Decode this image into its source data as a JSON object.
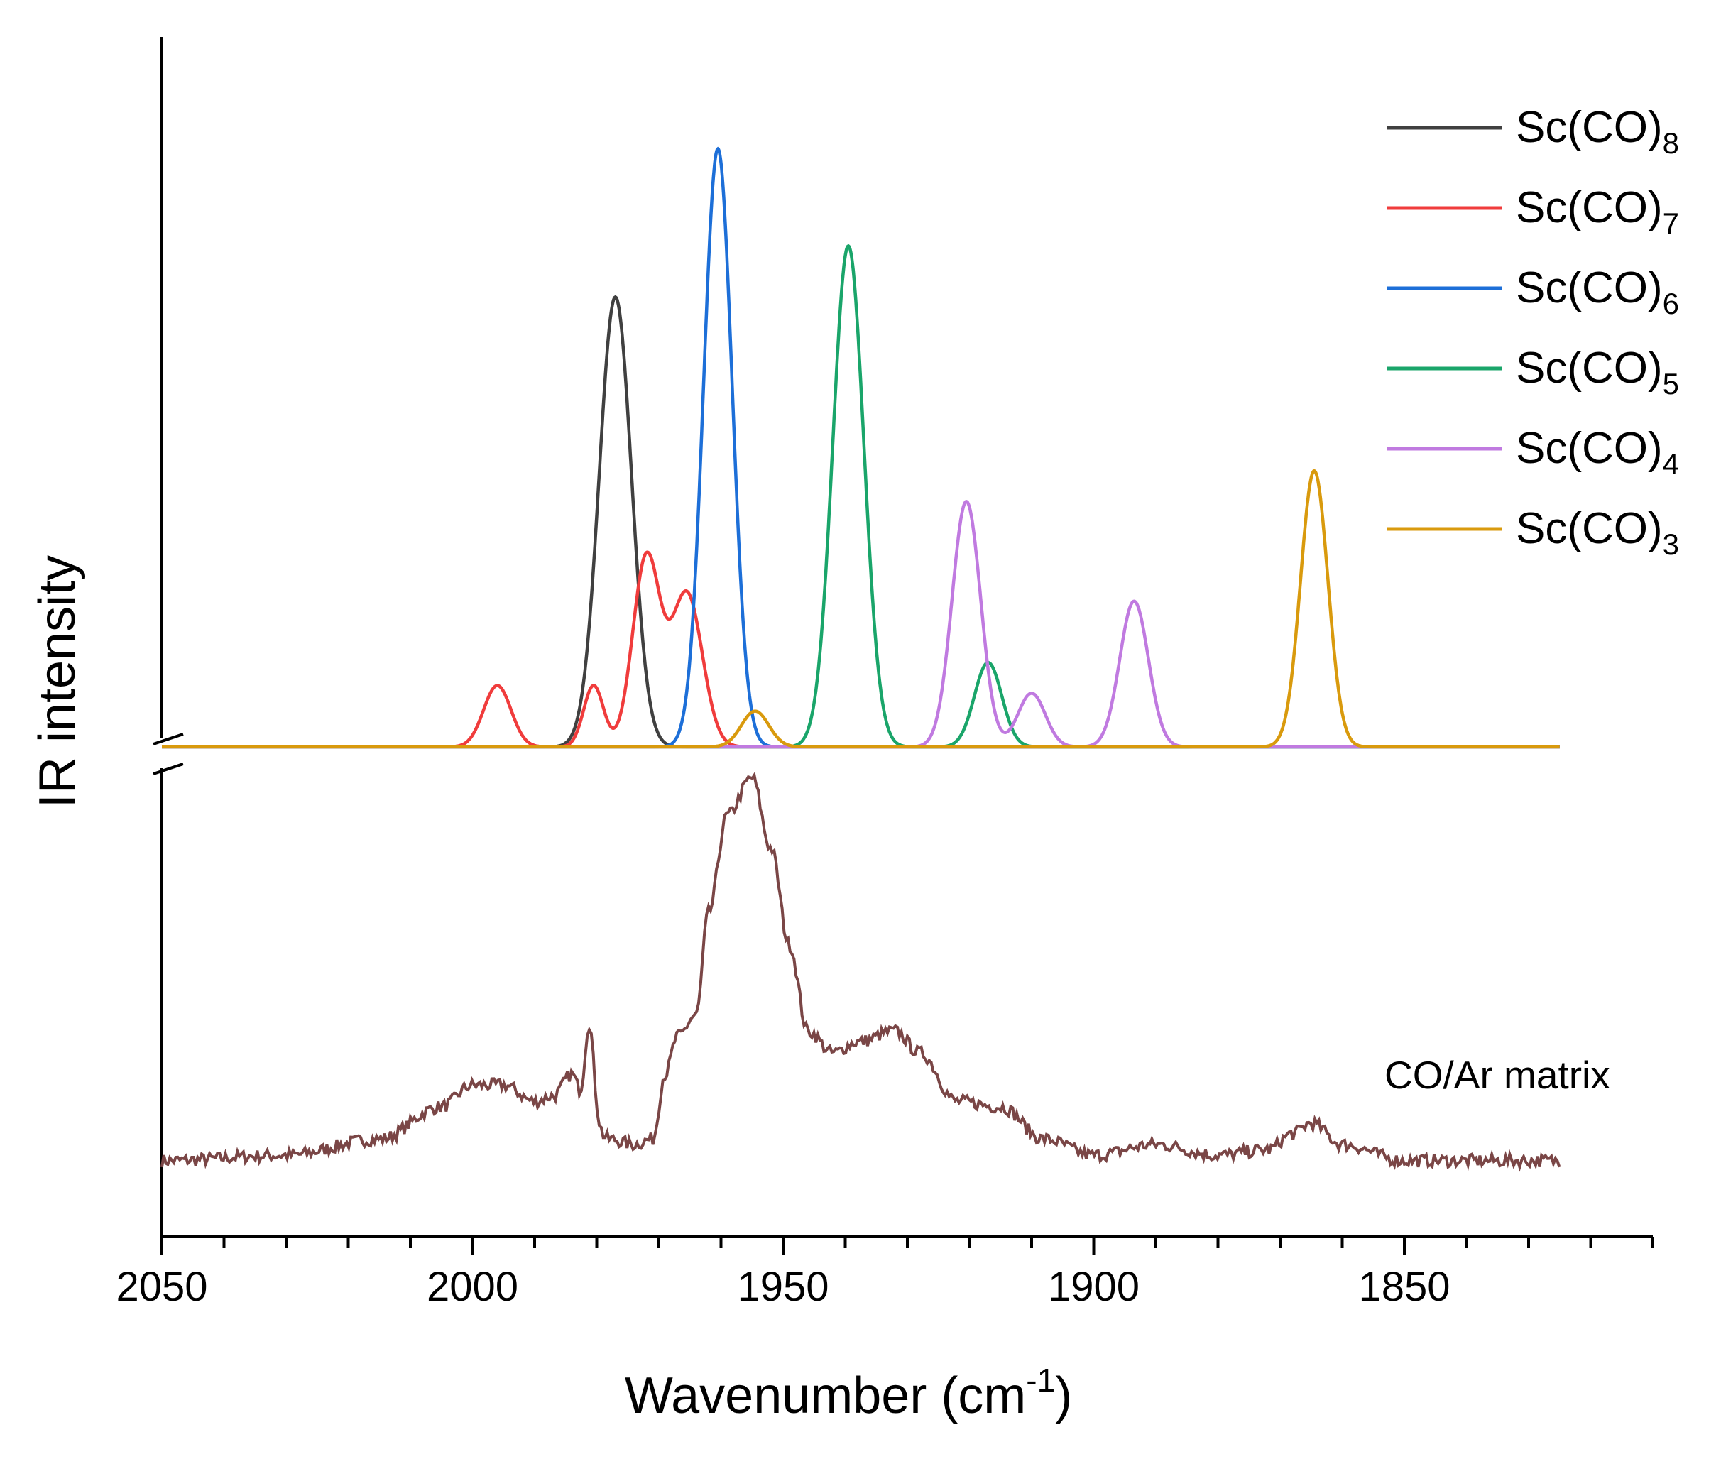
{
  "chart_data": {
    "type": "line",
    "title": "",
    "xlabel": "Wavenumber (cm",
    "xlabel_sup": "-1",
    "xlabel_close": ")",
    "ylabel": "IR intensity",
    "xlim": [
      2050,
      1810
    ],
    "x_ticks": [
      2050,
      2000,
      1950,
      1900,
      1850
    ],
    "x_tick_labels": [
      "2050",
      "2000",
      "1950",
      "1900",
      "1850"
    ],
    "x_minor_step": 10,
    "grid": false,
    "legend_position": "top-right",
    "calculated_spectra": {
      "x_range": [
        2050,
        1825
      ],
      "series": [
        {
          "name": "Sc(CO)8",
          "label_base": "Sc(CO)",
          "label_sub": "8",
          "color": "#404040",
          "peaks": [
            {
              "center": 1977,
              "height": 0.88,
              "width": 2.6
            }
          ]
        },
        {
          "name": "Sc(CO)7",
          "label_base": "Sc(CO)",
          "label_sub": "7",
          "color": "#f03c3c",
          "peaks": [
            {
              "center": 1996,
              "height": 0.12,
              "width": 2.2
            },
            {
              "center": 1980.5,
              "height": 0.12,
              "width": 1.6
            },
            {
              "center": 1972,
              "height": 0.37,
              "width": 2.2
            },
            {
              "center": 1965.5,
              "height": 0.3,
              "width": 2.5
            }
          ]
        },
        {
          "name": "Sc(CO)6",
          "label_base": "Sc(CO)",
          "label_sub": "6",
          "color": "#1d6fd8",
          "peaks": [
            {
              "center": 1960.5,
              "height": 1.17,
              "width": 2.3
            }
          ]
        },
        {
          "name": "Sc(CO)5",
          "label_base": "Sc(CO)",
          "label_sub": "5",
          "color": "#1aa56a",
          "peaks": [
            {
              "center": 1939.5,
              "height": 0.98,
              "width": 2.5
            },
            {
              "center": 1917,
              "height": 0.165,
              "width": 2.2
            }
          ]
        },
        {
          "name": "Sc(CO)4",
          "label_base": "Sc(CO)",
          "label_sub": "4",
          "color": "#c07ae0",
          "peaks": [
            {
              "center": 1920.5,
              "height": 0.48,
              "width": 2.3
            },
            {
              "center": 1910,
              "height": 0.105,
              "width": 2.2
            },
            {
              "center": 1893.5,
              "height": 0.285,
              "width": 2.3
            }
          ]
        },
        {
          "name": "Sc(CO)3",
          "label_base": "Sc(CO)",
          "label_sub": "3",
          "color": "#d99a0d",
          "peaks": [
            {
              "center": 1954.5,
              "height": 0.07,
              "width": 2.2
            },
            {
              "center": 1864.5,
              "height": 0.54,
              "width": 2.2
            }
          ]
        }
      ]
    },
    "experimental_spectrum": {
      "name": "CO/Ar matrix",
      "color": "#7a4646",
      "x_range": [
        2050,
        1825
      ],
      "noise_amplitude": 0.012,
      "baseline_points": [
        [
          2050,
          0.02
        ],
        [
          2030,
          0.03
        ],
        [
          2015,
          0.06
        ],
        [
          2005,
          0.12
        ],
        [
          2000,
          0.16
        ],
        [
          1995,
          0.16
        ],
        [
          1990,
          0.13
        ],
        [
          1987,
          0.14
        ],
        [
          1984,
          0.18
        ],
        [
          1982,
          0.12
        ],
        [
          1978,
          0.06
        ],
        [
          1974,
          0.05
        ],
        [
          1971,
          0.06
        ],
        [
          1969,
          0.18
        ],
        [
          1967,
          0.25
        ],
        [
          1964,
          0.29
        ],
        [
          1962,
          0.48
        ],
        [
          1959,
          0.66
        ],
        [
          1955,
          0.73
        ],
        [
          1952,
          0.6
        ],
        [
          1949,
          0.42
        ],
        [
          1946,
          0.26
        ],
        [
          1942,
          0.22
        ],
        [
          1938,
          0.24
        ],
        [
          1932,
          0.26
        ],
        [
          1928,
          0.22
        ],
        [
          1922,
          0.13
        ],
        [
          1915,
          0.12
        ],
        [
          1908,
          0.06
        ],
        [
          1900,
          0.03
        ],
        [
          1890,
          0.05
        ],
        [
          1880,
          0.03
        ],
        [
          1872,
          0.04
        ],
        [
          1868,
          0.07
        ],
        [
          1865,
          0.09
        ],
        [
          1860,
          0.05
        ],
        [
          1850,
          0.02
        ],
        [
          1840,
          0.02
        ],
        [
          1825,
          0.02
        ]
      ],
      "sharp_peak": {
        "center": 1981.2,
        "height": 0.16,
        "width": 0.7
      }
    },
    "annotation": "CO/Ar matrix"
  }
}
